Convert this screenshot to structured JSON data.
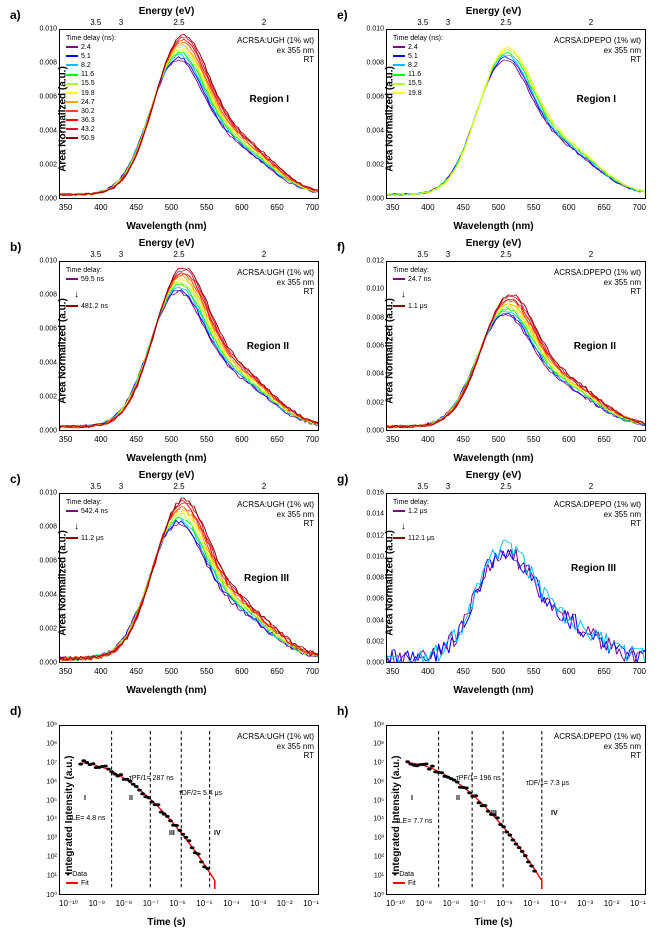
{
  "labels": {
    "wavelength": "Wavelength (nm)",
    "energy": "Energy (eV)",
    "area_norm": "Area Normalized (a.u.)",
    "int_intensity": "Integrated Intensity (a.u.)",
    "time": "Time (s)"
  },
  "panels": {
    "a": {
      "label": "a)",
      "sample": "ACRSA:UGH (1% wt)",
      "ex": "ex 355 nm",
      "temp": "RT",
      "region": "Region I"
    },
    "b": {
      "label": "b)",
      "sample": "ACRSA:UGH (1% wt)",
      "ex": "ex 355 nm",
      "temp": "RT",
      "region": "Region II"
    },
    "c": {
      "label": "c)",
      "sample": "ACRSA:UGH (1% wt)",
      "ex": "ex 355 nm",
      "temp": "RT",
      "region": "Region III"
    },
    "d": {
      "label": "d)",
      "sample": "ACRSA:UGH (1% wt)",
      "ex": "ex 355 nm",
      "temp": "RT"
    },
    "e": {
      "label": "e)",
      "sample": "ACRSA:DPEPO (1% wt)",
      "ex": "ex 355 nm",
      "temp": "RT",
      "region": "Region I"
    },
    "f": {
      "label": "f)",
      "sample": "ACRSA:DPEPO (1% wt)",
      "ex": "ex 355 nm",
      "temp": "RT",
      "region": "Region II"
    },
    "g": {
      "label": "g)",
      "sample": "ACRSA:DPEPO (1% wt)",
      "ex": "ex 355 nm",
      "temp": "RT",
      "region": "Region III"
    },
    "h": {
      "label": "h)",
      "sample": "ACRSA:DPEPO (1% wt)",
      "ex": "ex 355 nm",
      "temp": "RT"
    }
  },
  "time_delays_a": [
    "2.4",
    "5.1",
    "8.2",
    "11.6",
    "15.5",
    "19.8",
    "24.7",
    "30.2",
    "36.3",
    "43.2",
    "50.9"
  ],
  "time_delays_e": [
    "2.4",
    "5.1",
    "8.2",
    "11.6",
    "15.5",
    "19.8"
  ],
  "td_b": {
    "start": "59.5 ns",
    "end": "481.2 ns"
  },
  "td_c": {
    "start": "542.4 ns",
    "end": "11.2 μs"
  },
  "td_f": {
    "start": "24.7 ns",
    "end": "1.1 μs"
  },
  "td_g": {
    "start": "1.2 μs",
    "end": "112.1 μs"
  },
  "decay_d": {
    "tle": "τLE= 4.8 ns",
    "tpf": "τPF/1= 287 ns",
    "tdf": "τDF/2= 5.4 μs",
    "r1": "I",
    "r2": "II",
    "r3": "III",
    "r4": "IV"
  },
  "decay_h": {
    "tle": "τLE= 7.7 ns",
    "tpf": "τPF/1= 196 ns",
    "tdf": "τDF/1= 7.3 μs",
    "r1": "I",
    "r2": "II",
    "r3": "III",
    "r4": "IV"
  },
  "legend_dh": {
    "data": "Data",
    "fit": "Fit"
  },
  "colors": {
    "spectra": [
      "#800080",
      "#0000ff",
      "#00bfff",
      "#00ff00",
      "#adff2f",
      "#ffff00",
      "#ffa500",
      "#ff4500",
      "#ff0000",
      "#dc143c",
      "#8b0000"
    ],
    "fit": "#ff0000",
    "data": "#000000",
    "axis": "#000000"
  },
  "spec_axis": {
    "xlim": [
      330,
      700
    ],
    "xticks": [
      350,
      400,
      450,
      500,
      550,
      600,
      650,
      700
    ],
    "ylim": [
      0,
      0.01
    ],
    "yticks": [
      "0.000",
      "0.002",
      "0.004",
      "0.006",
      "0.008",
      "0.010"
    ],
    "eticks": [
      {
        "v": 3.5,
        "p": 0.12
      },
      {
        "v": 3,
        "p": 0.23
      },
      {
        "v": 2.5,
        "p": 0.44
      },
      {
        "v": 2,
        "p": 0.78
      }
    ]
  },
  "spec_axis_f": {
    "ylim": [
      0,
      0.012
    ],
    "yticks": [
      "0.000",
      "0.002",
      "0.004",
      "0.006",
      "0.008",
      "0.010",
      "0.012"
    ]
  },
  "spec_axis_g": {
    "ylim": [
      0,
      0.016
    ],
    "yticks": [
      "0.000",
      "0.002",
      "0.004",
      "0.006",
      "0.008",
      "0.010",
      "0.012",
      "0.014",
      "0.016"
    ]
  },
  "decay_axis": {
    "xticks": [
      "10⁻¹⁰",
      "10⁻⁹",
      "10⁻⁸",
      "10⁻⁷",
      "10⁻⁶",
      "10⁻⁵",
      "10⁻⁴",
      "10⁻³",
      "10⁻²",
      "10⁻¹"
    ],
    "yticks": [
      "10⁰",
      "10¹",
      "10²",
      "10³",
      "10⁴",
      "10⁵",
      "10⁶",
      "10⁷",
      "10⁸",
      "10⁹"
    ]
  },
  "td_header": "Time delay (ns):",
  "td_header2": "Time delay:"
}
